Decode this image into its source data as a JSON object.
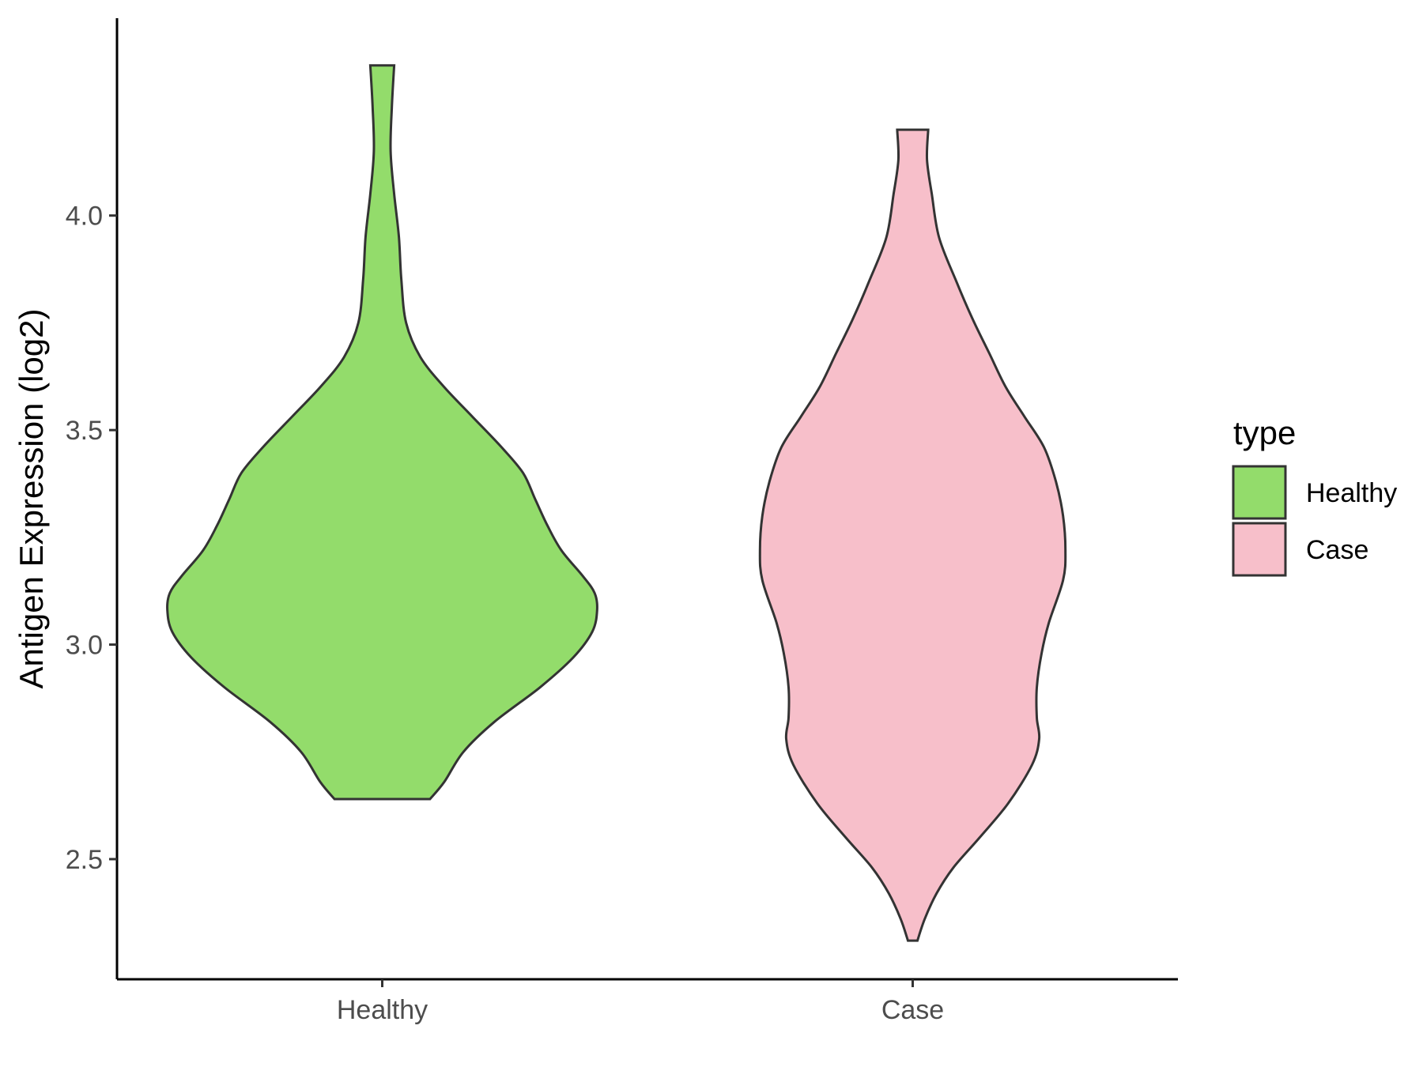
{
  "chart_data": {
    "type": "violin",
    "title": "",
    "xlabel": "",
    "ylabel": "Antigen Expression (log2)",
    "ylim": [
      2.22,
      4.46
    ],
    "y_ticks": [
      "2.5",
      "3.0",
      "3.5",
      "4.0"
    ],
    "y_tick_values": [
      2.5,
      3.0,
      3.5,
      4.0
    ],
    "categories": [
      "Healthy",
      "Case"
    ],
    "grid": false,
    "legend": {
      "title": "type",
      "position": "right",
      "entries": [
        "Healthy",
        "Case"
      ]
    },
    "series": [
      {
        "name": "Healthy",
        "color": "#93dc6b",
        "min": 2.64,
        "max": 4.35,
        "density_y": [
          2.64,
          2.68,
          2.75,
          2.82,
          2.9,
          2.97,
          3.03,
          3.08,
          3.12,
          3.16,
          3.22,
          3.28,
          3.34,
          3.4,
          3.46,
          3.53,
          3.6,
          3.67,
          3.75,
          3.85,
          3.95,
          4.05,
          4.15,
          4.25,
          4.35
        ],
        "density_w": [
          0.2,
          0.26,
          0.34,
          0.47,
          0.66,
          0.8,
          0.88,
          0.9,
          0.89,
          0.84,
          0.75,
          0.69,
          0.64,
          0.59,
          0.5,
          0.38,
          0.26,
          0.16,
          0.1,
          0.08,
          0.07,
          0.05,
          0.035,
          0.04,
          0.05
        ]
      },
      {
        "name": "Case",
        "color": "#f7bfca",
        "min": 2.31,
        "max": 4.2,
        "density_y": [
          2.31,
          2.36,
          2.42,
          2.48,
          2.55,
          2.63,
          2.72,
          2.78,
          2.83,
          2.9,
          2.98,
          3.05,
          3.15,
          3.22,
          3.3,
          3.38,
          3.46,
          3.53,
          3.6,
          3.68,
          3.76,
          3.85,
          3.95,
          4.05,
          4.13,
          4.2
        ],
        "density_w": [
          0.02,
          0.05,
          0.1,
          0.17,
          0.28,
          0.4,
          0.5,
          0.53,
          0.52,
          0.52,
          0.54,
          0.57,
          0.63,
          0.64,
          0.63,
          0.6,
          0.55,
          0.47,
          0.39,
          0.32,
          0.25,
          0.18,
          0.11,
          0.08,
          0.06,
          0.065
        ]
      }
    ]
  }
}
